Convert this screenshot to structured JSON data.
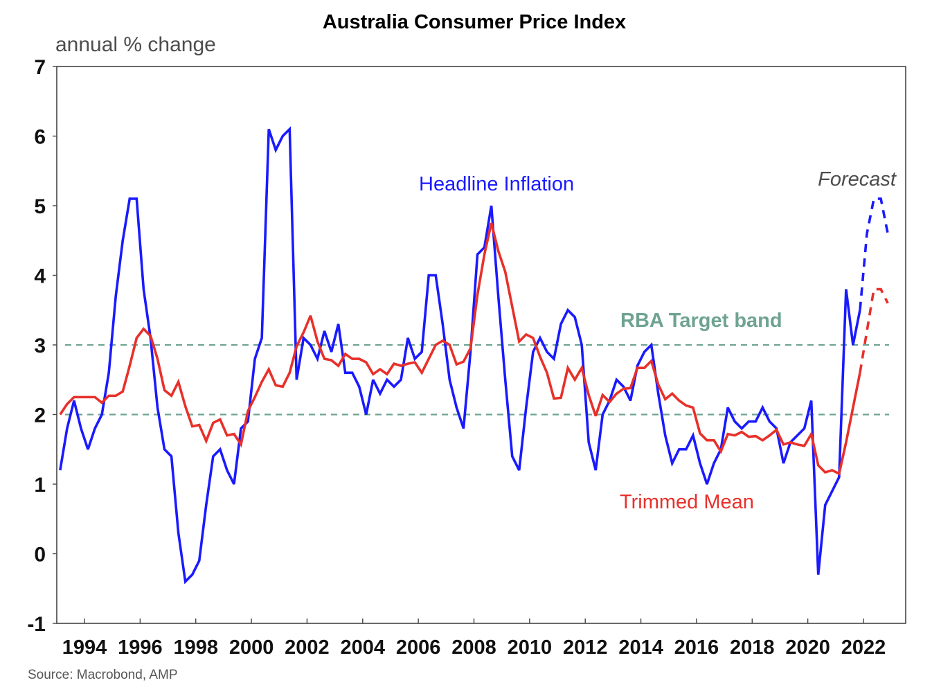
{
  "chart_data": {
    "type": "line",
    "title": "Australia Consumer Price Index",
    "ylabel": "annual % change",
    "xlabel": "",
    "ylim": [
      -1,
      7
    ],
    "yticks": [
      -1,
      0,
      1,
      2,
      3,
      4,
      5,
      6,
      7
    ],
    "xlim": [
      1993.0,
      2023.5
    ],
    "xticks": [
      1994,
      1996,
      1998,
      2000,
      2002,
      2004,
      2006,
      2008,
      2010,
      2012,
      2014,
      2016,
      2018,
      2020,
      2022
    ],
    "grid": false,
    "frequency": "quarterly",
    "x_start": 1993.125,
    "x_step": 0.25,
    "series": [
      {
        "name": "Headline Inflation",
        "color": "#1a1aff",
        "values": [
          1.2,
          1.8,
          2.2,
          1.8,
          1.5,
          1.8,
          2.0,
          2.6,
          3.7,
          4.5,
          5.1,
          5.1,
          3.8,
          3.1,
          2.1,
          1.5,
          1.4,
          0.3,
          -0.4,
          -0.3,
          -0.1,
          0.7,
          1.4,
          1.5,
          1.2,
          1.0,
          1.8,
          1.9,
          2.8,
          3.1,
          6.1,
          5.8,
          6.0,
          6.1,
          2.5,
          3.1,
          3.0,
          2.8,
          3.2,
          2.9,
          3.3,
          2.6,
          2.6,
          2.4,
          2.0,
          2.5,
          2.3,
          2.5,
          2.4,
          2.5,
          3.1,
          2.8,
          2.9,
          4.0,
          4.0,
          3.3,
          2.5,
          2.1,
          1.8,
          2.9,
          4.3,
          4.4,
          5.0,
          3.7,
          2.5,
          1.4,
          1.2,
          2.1,
          2.9,
          3.1,
          2.9,
          2.8,
          3.3,
          3.5,
          3.4,
          3.0,
          1.6,
          1.2,
          2.0,
          2.2,
          2.5,
          2.4,
          2.2,
          2.7,
          2.9,
          3.0,
          2.3,
          1.7,
          1.3,
          1.5,
          1.5,
          1.7,
          1.3,
          1.0,
          1.3,
          1.5,
          2.1,
          1.9,
          1.8,
          1.9,
          1.9,
          2.1,
          1.9,
          1.8,
          1.3,
          1.6,
          1.7,
          1.8,
          2.2,
          -0.3,
          0.7,
          0.9,
          1.1,
          3.8,
          3.0,
          3.5
        ],
        "forecast": [
          3.5,
          4.6,
          5.1,
          5.1,
          4.6
        ]
      },
      {
        "name": "Trimmed Mean",
        "color": "#e8302a",
        "values": [
          2.0,
          2.15,
          2.25,
          2.25,
          2.25,
          2.25,
          2.17,
          2.27,
          2.27,
          2.33,
          2.7,
          3.1,
          3.23,
          3.13,
          2.8,
          2.35,
          2.27,
          2.47,
          2.12,
          1.83,
          1.85,
          1.62,
          1.88,
          1.93,
          1.7,
          1.72,
          1.57,
          2.05,
          2.25,
          2.47,
          2.65,
          2.42,
          2.4,
          2.6,
          2.98,
          3.18,
          3.42,
          3.05,
          2.8,
          2.78,
          2.7,
          2.87,
          2.8,
          2.8,
          2.75,
          2.58,
          2.65,
          2.58,
          2.73,
          2.7,
          2.73,
          2.75,
          2.6,
          2.8,
          3.0,
          3.06,
          3.0,
          2.72,
          2.76,
          2.95,
          3.72,
          4.3,
          4.75,
          4.35,
          4.05,
          3.55,
          3.05,
          3.15,
          3.1,
          2.83,
          2.6,
          2.23,
          2.24,
          2.67,
          2.5,
          2.67,
          2.28,
          1.98,
          2.28,
          2.18,
          2.3,
          2.37,
          2.38,
          2.67,
          2.67,
          2.77,
          2.43,
          2.22,
          2.3,
          2.2,
          2.13,
          2.1,
          1.73,
          1.63,
          1.63,
          1.47,
          1.72,
          1.7,
          1.75,
          1.68,
          1.69,
          1.63,
          1.7,
          1.78,
          1.57,
          1.6,
          1.57,
          1.55,
          1.72,
          1.27,
          1.17,
          1.2,
          1.15,
          1.6,
          2.1,
          2.6
        ],
        "forecast": [
          2.6,
          3.2,
          3.8,
          3.8,
          3.6
        ]
      }
    ],
    "reference_lines": [
      {
        "name": "RBA Target band lower",
        "value": 2,
        "color": "#6fa391",
        "style": "dashed"
      },
      {
        "name": "RBA Target band upper",
        "value": 3,
        "color": "#6fa391",
        "style": "dashed"
      }
    ],
    "annotations": {
      "headline": "Headline Inflation",
      "trimmed": "Trimmed Mean",
      "rba": "RBA Target band",
      "forecast": "Forecast"
    },
    "source": "Source: Macrobond, AMP"
  }
}
